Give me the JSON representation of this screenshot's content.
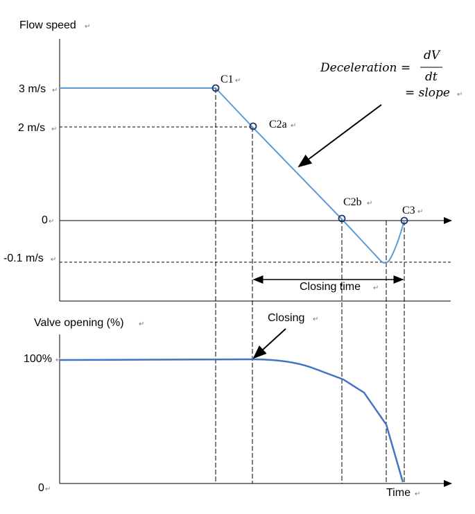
{
  "top_panel": {
    "y_title": "Flow speed",
    "y_ticks": {
      "v3": "3 m/s",
      "v2": "2 m/s",
      "v0": "0",
      "vneg": "-0.1 m/s"
    },
    "points": {
      "c1": "C1",
      "c2a": "C2a",
      "c2b": "C2b",
      "c3": "C3"
    },
    "formula": {
      "lhs": "Deceleration =",
      "num": "dV",
      "den": "dt",
      "rhs": "= slope"
    },
    "closing_time": "Closing time"
  },
  "bottom_panel": {
    "y_title": "Valve opening (%)",
    "y_ticks": {
      "top": "100%",
      "bottom": "0"
    },
    "closing_label": "Closing",
    "x_title": "Time"
  },
  "colors": {
    "speed_line": "#5b9bd5",
    "valve_line": "#4472c4",
    "axis": "#000000"
  },
  "mark_glyph": "↵"
}
